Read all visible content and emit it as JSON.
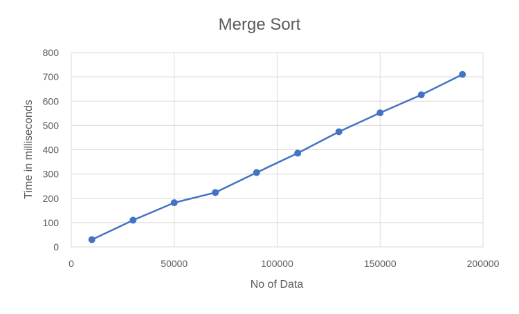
{
  "chart_data": {
    "type": "scatter",
    "title": "Merge Sort",
    "xlabel": "No of Data",
    "ylabel": "Time in milliseconds",
    "xlim": [
      0,
      200000
    ],
    "ylim": [
      0,
      800
    ],
    "x_ticks": [
      "0",
      "50000",
      "100000",
      "150000",
      "200000"
    ],
    "y_ticks": [
      "0",
      "100",
      "200",
      "300",
      "400",
      "500",
      "600",
      "700",
      "800"
    ],
    "grid": true,
    "series": [
      {
        "x": [
          10000,
          30000,
          50000,
          70000,
          90000,
          110000,
          130000,
          150000,
          170000,
          190000
        ],
        "y": [
          30,
          110,
          182,
          224,
          306,
          386,
          474,
          552,
          626,
          710
        ]
      }
    ],
    "colors": {
      "series": "#4472c4",
      "grid": "#d9d9d9",
      "text": "#595959"
    }
  }
}
